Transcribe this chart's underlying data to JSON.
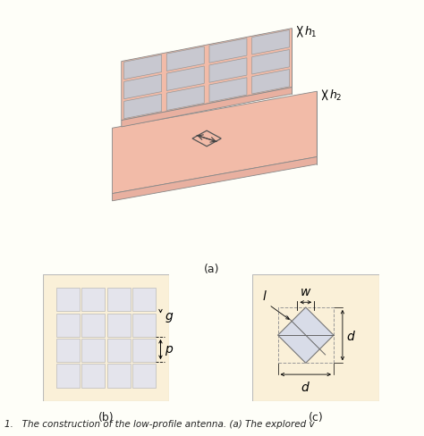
{
  "bg_color": "#FEFEF8",
  "panel_bg": "#FAF0D8",
  "salmon": "#F2BBA8",
  "salmon_dark": "#E0A090",
  "salmon_side_right": "#DDA090",
  "salmon_side_front": "#E8B0A0",
  "gray_patch": "#C8C8D0",
  "white_patch": "#E4E4EC",
  "caption_color": "#222222",
  "title_a": "(a)",
  "title_b": "(b)",
  "title_c": "(c)",
  "caption": "1.   The construction of the low-profile antenna. (a) The explored v"
}
